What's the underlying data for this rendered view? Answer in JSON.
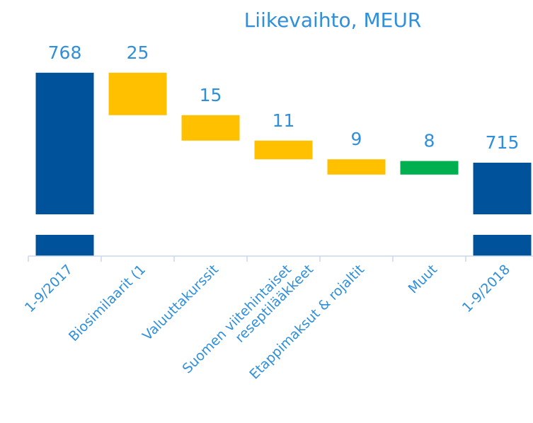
{
  "chart_data": {
    "type": "waterfall",
    "title": "Liikevaihto, MEUR",
    "categories": [
      [
        "1-9/2017"
      ],
      [
        "Biosimilaarit (1"
      ],
      [
        "Valuuttakurssit"
      ],
      [
        "Suomen viitehintaiset",
        "reseptilääkkeet"
      ],
      [
        "Etappimaksut & rojaltit"
      ],
      [
        "Muut"
      ],
      [
        "1-9/2018"
      ]
    ],
    "values": [
      768,
      25,
      15,
      11,
      9,
      8,
      715
    ],
    "measure": [
      "total",
      "decrease",
      "decrease",
      "decrease",
      "decrease",
      "increase",
      "total"
    ],
    "colors": {
      "total": "#00529b",
      "decrease": "#ffc000",
      "increase": "#00b050"
    },
    "ylim": [
      660,
      800
    ],
    "axis_break": true
  }
}
